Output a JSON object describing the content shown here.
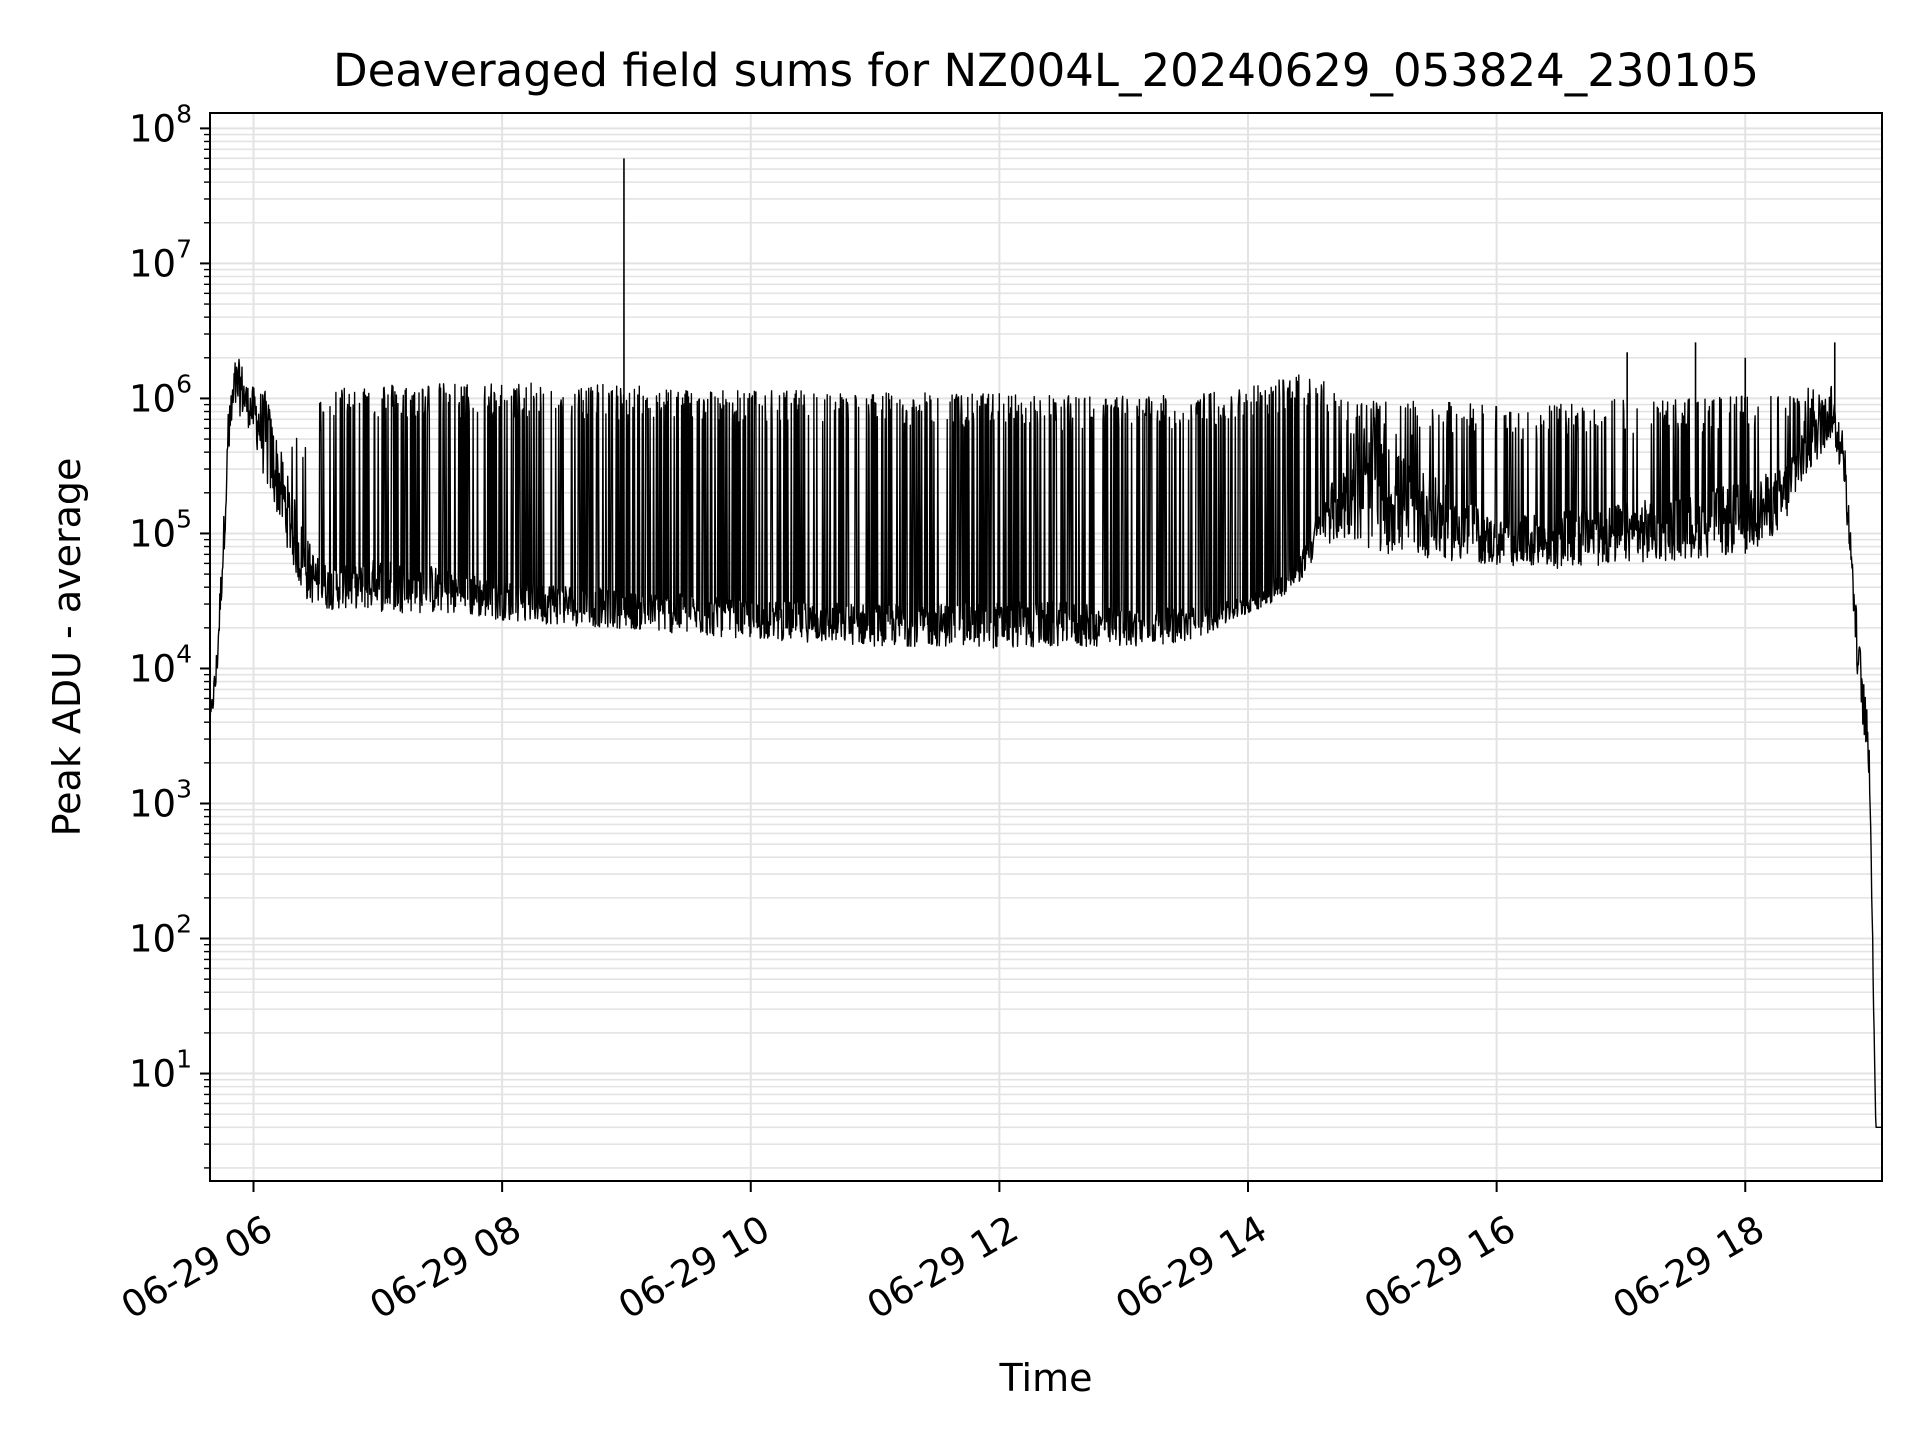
{
  "chart_data": {
    "type": "line",
    "title": "Deaveraged field sums for NZ004L_20240629_053824_230105",
    "xlabel": "Time",
    "ylabel": "Peak ADU - average",
    "yscale": "log",
    "ylim": [
      1.6,
      130000000
    ],
    "xlim_hours": [
      5.65,
      19.1
    ],
    "xticks": [
      {
        "label": "06-29 06",
        "hour": 6
      },
      {
        "label": "06-29 08",
        "hour": 8
      },
      {
        "label": "06-29 10",
        "hour": 10
      },
      {
        "label": "06-29 12",
        "hour": 12
      },
      {
        "label": "06-29 14",
        "hour": 14
      },
      {
        "label": "06-29 16",
        "hour": 16
      },
      {
        "label": "06-29 18",
        "hour": 18
      }
    ],
    "yticks": [
      {
        "base": "10",
        "exp": "1",
        "value": 10
      },
      {
        "base": "10",
        "exp": "2",
        "value": 100
      },
      {
        "base": "10",
        "exp": "3",
        "value": 1000
      },
      {
        "base": "10",
        "exp": "4",
        "value": 10000
      },
      {
        "base": "10",
        "exp": "5",
        "value": 100000
      },
      {
        "base": "10",
        "exp": "6",
        "value": 1000000
      },
      {
        "base": "10",
        "exp": "7",
        "value": 10000000
      },
      {
        "base": "10",
        "exp": "8",
        "value": 100000000
      }
    ],
    "grid": true,
    "line_color": "#000000",
    "grid_color": "#e3e3e3",
    "series": [
      {
        "x": [
          5.65,
          5.7,
          5.75,
          5.8,
          5.85,
          5.9,
          5.95,
          6.0,
          6.1,
          6.2,
          6.3,
          6.4,
          6.5,
          6.6,
          6.8,
          7.0,
          7.5,
          8.0,
          8.5,
          9.0,
          9.5,
          10.0,
          10.5,
          11.0,
          11.5,
          12.0,
          12.5,
          13.0,
          13.5,
          13.8,
          14.0,
          14.2,
          14.4,
          14.6,
          14.8,
          15.0,
          15.5,
          16.0,
          16.5,
          17.0,
          17.5,
          18.0,
          18.3,
          18.5,
          18.7,
          18.8,
          18.9,
          19.0,
          19.05,
          19.1
        ],
        "baseline": [
          4000,
          9000,
          60000,
          500000,
          1200000,
          1200000,
          900000,
          800000,
          500000,
          250000,
          120000,
          60000,
          45000,
          40000,
          40000,
          42000,
          38000,
          32000,
          30000,
          27000,
          25000,
          23000,
          22000,
          21000,
          21000,
          21000,
          21000,
          20000,
          21000,
          25000,
          30000,
          38000,
          50000,
          120000,
          200000,
          200000,
          130000,
          85000,
          90000,
          100000,
          110000,
          130000,
          180000,
          450000,
          800000,
          300000,
          15000,
          2000,
          4,
          4
        ],
        "peak": [
          7000,
          15000,
          150000,
          1100000,
          1500000,
          1500000,
          1200000,
          1100000,
          1100000,
          900000,
          500000,
          600000,
          900000,
          1200000,
          1300000,
          1300000,
          1300000,
          1300000,
          1300000,
          1250000,
          1200000,
          1150000,
          1150000,
          1100000,
          1100000,
          1100000,
          1050000,
          1050000,
          1050000,
          1150000,
          1250000,
          1400000,
          1500000,
          1500000,
          1000000,
          950000,
          950000,
          900000,
          900000,
          1000000,
          1000000,
          1050000,
          1100000,
          1200000,
          1400000,
          700000,
          30000,
          3000,
          4,
          4
        ],
        "low": [
          3500,
          6000,
          40000,
          300000,
          700000,
          700000,
          600000,
          500000,
          200000,
          120000,
          60000,
          30000,
          28000,
          26000,
          27000,
          25000,
          24000,
          22000,
          20000,
          19000,
          17000,
          16000,
          15000,
          14000,
          14000,
          13500,
          13500,
          14000,
          15000,
          20000,
          25000,
          30000,
          40000,
          80000,
          80000,
          65000,
          60000,
          55000,
          52000,
          55000,
          60000,
          65000,
          100000,
          250000,
          500000,
          200000,
          9000,
          1200,
          4,
          4
        ],
        "spikes": [
          {
            "x": 8.98,
            "y": 60000000
          },
          {
            "x": 17.6,
            "y": 2600000
          },
          {
            "x": 18.72,
            "y": 2600000
          },
          {
            "x": 17.05,
            "y": 2200000
          },
          {
            "x": 18.0,
            "y": 2000000
          }
        ]
      }
    ]
  }
}
